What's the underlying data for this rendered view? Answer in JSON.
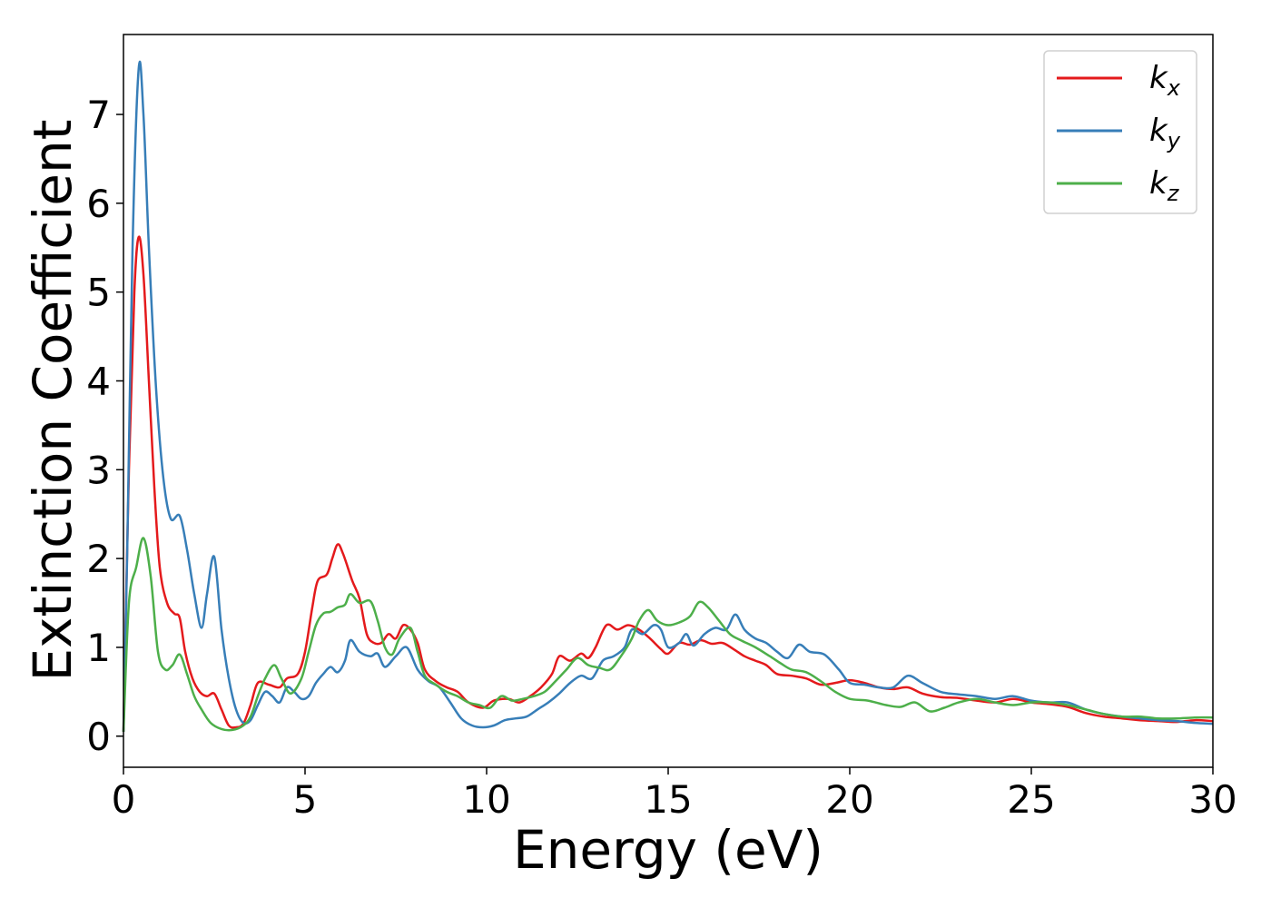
{
  "chart_data": {
    "type": "line",
    "xlabel": "Energy (eV)",
    "ylabel": "Extinction Coefficient",
    "xlim": [
      0,
      30
    ],
    "ylim": [
      -0.35,
      7.9
    ],
    "xticks": [
      "0",
      "5",
      "10",
      "15",
      "20",
      "25",
      "30"
    ],
    "yticks": [
      "0",
      "1",
      "2",
      "3",
      "4",
      "5",
      "6",
      "7"
    ],
    "grid": false,
    "legend_position": "top-right",
    "series": [
      {
        "name": "k",
        "subscript": "x",
        "color": "#e41a1c",
        "points": [
          [
            0,
            0.05
          ],
          [
            0.15,
            3.0
          ],
          [
            0.3,
            5.0
          ],
          [
            0.42,
            5.62
          ],
          [
            0.55,
            5.2
          ],
          [
            0.7,
            4.0
          ],
          [
            0.85,
            2.8
          ],
          [
            1.0,
            1.9
          ],
          [
            1.2,
            1.5
          ],
          [
            1.4,
            1.38
          ],
          [
            1.55,
            1.33
          ],
          [
            1.7,
            0.95
          ],
          [
            1.9,
            0.65
          ],
          [
            2.1,
            0.5
          ],
          [
            2.3,
            0.45
          ],
          [
            2.5,
            0.48
          ],
          [
            2.7,
            0.3
          ],
          [
            2.9,
            0.12
          ],
          [
            3.1,
            0.1
          ],
          [
            3.3,
            0.14
          ],
          [
            3.5,
            0.35
          ],
          [
            3.7,
            0.6
          ],
          [
            4.0,
            0.58
          ],
          [
            4.3,
            0.55
          ],
          [
            4.5,
            0.65
          ],
          [
            4.8,
            0.7
          ],
          [
            5.0,
            0.95
          ],
          [
            5.2,
            1.45
          ],
          [
            5.35,
            1.75
          ],
          [
            5.6,
            1.82
          ],
          [
            5.75,
            2.0
          ],
          [
            5.9,
            2.16
          ],
          [
            6.05,
            2.05
          ],
          [
            6.3,
            1.75
          ],
          [
            6.5,
            1.55
          ],
          [
            6.7,
            1.15
          ],
          [
            6.9,
            1.05
          ],
          [
            7.1,
            1.05
          ],
          [
            7.3,
            1.15
          ],
          [
            7.5,
            1.1
          ],
          [
            7.7,
            1.25
          ],
          [
            7.9,
            1.2
          ],
          [
            8.1,
            1.05
          ],
          [
            8.3,
            0.75
          ],
          [
            8.6,
            0.62
          ],
          [
            8.9,
            0.55
          ],
          [
            9.2,
            0.5
          ],
          [
            9.5,
            0.38
          ],
          [
            9.9,
            0.32
          ],
          [
            10.2,
            0.4
          ],
          [
            10.6,
            0.42
          ],
          [
            10.9,
            0.38
          ],
          [
            11.2,
            0.45
          ],
          [
            11.5,
            0.55
          ],
          [
            11.8,
            0.7
          ],
          [
            12.0,
            0.9
          ],
          [
            12.3,
            0.85
          ],
          [
            12.6,
            0.93
          ],
          [
            12.8,
            0.88
          ],
          [
            13.0,
            1.0
          ],
          [
            13.3,
            1.25
          ],
          [
            13.6,
            1.2
          ],
          [
            13.9,
            1.25
          ],
          [
            14.2,
            1.2
          ],
          [
            14.5,
            1.1
          ],
          [
            14.8,
            0.98
          ],
          [
            15.0,
            0.93
          ],
          [
            15.3,
            1.05
          ],
          [
            15.6,
            1.03
          ],
          [
            15.9,
            1.08
          ],
          [
            16.2,
            1.04
          ],
          [
            16.5,
            1.05
          ],
          [
            16.8,
            0.98
          ],
          [
            17.1,
            0.9
          ],
          [
            17.4,
            0.85
          ],
          [
            17.7,
            0.8
          ],
          [
            18.0,
            0.7
          ],
          [
            18.4,
            0.68
          ],
          [
            18.8,
            0.65
          ],
          [
            19.2,
            0.58
          ],
          [
            19.6,
            0.6
          ],
          [
            20.0,
            0.63
          ],
          [
            20.4,
            0.6
          ],
          [
            20.8,
            0.55
          ],
          [
            21.2,
            0.53
          ],
          [
            21.6,
            0.55
          ],
          [
            22.0,
            0.48
          ],
          [
            22.5,
            0.44
          ],
          [
            23.0,
            0.43
          ],
          [
            23.5,
            0.4
          ],
          [
            24.0,
            0.38
          ],
          [
            24.5,
            0.42
          ],
          [
            25.0,
            0.38
          ],
          [
            25.5,
            0.36
          ],
          [
            26.0,
            0.33
          ],
          [
            26.5,
            0.26
          ],
          [
            27.0,
            0.22
          ],
          [
            27.5,
            0.2
          ],
          [
            28.0,
            0.18
          ],
          [
            28.5,
            0.17
          ],
          [
            29.0,
            0.16
          ],
          [
            29.5,
            0.18
          ],
          [
            30.0,
            0.17
          ]
        ]
      },
      {
        "name": "k",
        "subscript": "y",
        "color": "#377eb8",
        "points": [
          [
            0,
            0.05
          ],
          [
            0.1,
            2.0
          ],
          [
            0.25,
            5.5
          ],
          [
            0.42,
            7.52
          ],
          [
            0.55,
            7.0
          ],
          [
            0.7,
            5.5
          ],
          [
            0.9,
            3.9
          ],
          [
            1.1,
            2.9
          ],
          [
            1.3,
            2.45
          ],
          [
            1.55,
            2.48
          ],
          [
            1.75,
            2.1
          ],
          [
            1.95,
            1.6
          ],
          [
            2.15,
            1.22
          ],
          [
            2.3,
            1.6
          ],
          [
            2.5,
            2.02
          ],
          [
            2.7,
            1.2
          ],
          [
            2.9,
            0.65
          ],
          [
            3.1,
            0.3
          ],
          [
            3.3,
            0.15
          ],
          [
            3.5,
            0.18
          ],
          [
            3.7,
            0.35
          ],
          [
            3.9,
            0.5
          ],
          [
            4.1,
            0.45
          ],
          [
            4.3,
            0.38
          ],
          [
            4.5,
            0.55
          ],
          [
            4.7,
            0.5
          ],
          [
            4.9,
            0.42
          ],
          [
            5.1,
            0.45
          ],
          [
            5.3,
            0.6
          ],
          [
            5.5,
            0.7
          ],
          [
            5.7,
            0.78
          ],
          [
            5.9,
            0.72
          ],
          [
            6.1,
            0.85
          ],
          [
            6.25,
            1.08
          ],
          [
            6.5,
            0.95
          ],
          [
            6.8,
            0.9
          ],
          [
            7.0,
            0.93
          ],
          [
            7.2,
            0.78
          ],
          [
            7.5,
            0.9
          ],
          [
            7.8,
            1.0
          ],
          [
            8.1,
            0.75
          ],
          [
            8.4,
            0.62
          ],
          [
            8.7,
            0.55
          ],
          [
            9.0,
            0.38
          ],
          [
            9.3,
            0.2
          ],
          [
            9.6,
            0.12
          ],
          [
            9.9,
            0.1
          ],
          [
            10.2,
            0.12
          ],
          [
            10.5,
            0.18
          ],
          [
            10.8,
            0.2
          ],
          [
            11.1,
            0.22
          ],
          [
            11.4,
            0.3
          ],
          [
            11.7,
            0.38
          ],
          [
            12.0,
            0.48
          ],
          [
            12.3,
            0.6
          ],
          [
            12.6,
            0.68
          ],
          [
            12.9,
            0.65
          ],
          [
            13.2,
            0.85
          ],
          [
            13.5,
            0.9
          ],
          [
            13.8,
            1.0
          ],
          [
            14.0,
            1.2
          ],
          [
            14.3,
            1.15
          ],
          [
            14.6,
            1.25
          ],
          [
            14.8,
            1.2
          ],
          [
            15.0,
            1.0
          ],
          [
            15.3,
            1.05
          ],
          [
            15.5,
            1.15
          ],
          [
            15.7,
            1.02
          ],
          [
            16.0,
            1.15
          ],
          [
            16.3,
            1.22
          ],
          [
            16.6,
            1.2
          ],
          [
            16.85,
            1.37
          ],
          [
            17.1,
            1.2
          ],
          [
            17.4,
            1.1
          ],
          [
            17.7,
            1.05
          ],
          [
            18.0,
            0.95
          ],
          [
            18.3,
            0.88
          ],
          [
            18.6,
            1.03
          ],
          [
            18.9,
            0.95
          ],
          [
            19.3,
            0.92
          ],
          [
            19.7,
            0.75
          ],
          [
            20.0,
            0.6
          ],
          [
            20.4,
            0.58
          ],
          [
            20.8,
            0.55
          ],
          [
            21.2,
            0.55
          ],
          [
            21.6,
            0.68
          ],
          [
            22.0,
            0.6
          ],
          [
            22.5,
            0.5
          ],
          [
            23.0,
            0.47
          ],
          [
            23.5,
            0.45
          ],
          [
            24.0,
            0.42
          ],
          [
            24.5,
            0.45
          ],
          [
            25.0,
            0.4
          ],
          [
            25.5,
            0.38
          ],
          [
            26.0,
            0.38
          ],
          [
            26.5,
            0.3
          ],
          [
            27.0,
            0.25
          ],
          [
            27.5,
            0.22
          ],
          [
            28.0,
            0.2
          ],
          [
            28.5,
            0.18
          ],
          [
            29.0,
            0.17
          ],
          [
            29.5,
            0.15
          ],
          [
            30.0,
            0.14
          ]
        ]
      },
      {
        "name": "k",
        "subscript": "z",
        "color": "#4daf4a",
        "points": [
          [
            0,
            0.05
          ],
          [
            0.15,
            1.5
          ],
          [
            0.35,
            1.9
          ],
          [
            0.55,
            2.23
          ],
          [
            0.75,
            1.8
          ],
          [
            0.95,
            0.95
          ],
          [
            1.15,
            0.75
          ],
          [
            1.35,
            0.8
          ],
          [
            1.55,
            0.92
          ],
          [
            1.75,
            0.7
          ],
          [
            1.95,
            0.45
          ],
          [
            2.15,
            0.3
          ],
          [
            2.4,
            0.15
          ],
          [
            2.7,
            0.08
          ],
          [
            3.0,
            0.07
          ],
          [
            3.3,
            0.12
          ],
          [
            3.5,
            0.22
          ],
          [
            3.7,
            0.45
          ],
          [
            3.9,
            0.65
          ],
          [
            4.15,
            0.8
          ],
          [
            4.35,
            0.65
          ],
          [
            4.6,
            0.48
          ],
          [
            4.9,
            0.65
          ],
          [
            5.1,
            0.95
          ],
          [
            5.3,
            1.25
          ],
          [
            5.5,
            1.38
          ],
          [
            5.7,
            1.4
          ],
          [
            5.9,
            1.45
          ],
          [
            6.1,
            1.48
          ],
          [
            6.25,
            1.6
          ],
          [
            6.5,
            1.5
          ],
          [
            6.8,
            1.52
          ],
          [
            7.0,
            1.3
          ],
          [
            7.2,
            1.0
          ],
          [
            7.4,
            0.92
          ],
          [
            7.6,
            1.1
          ],
          [
            7.9,
            1.22
          ],
          [
            8.1,
            0.95
          ],
          [
            8.3,
            0.68
          ],
          [
            8.6,
            0.58
          ],
          [
            8.9,
            0.5
          ],
          [
            9.2,
            0.45
          ],
          [
            9.5,
            0.38
          ],
          [
            9.8,
            0.35
          ],
          [
            10.1,
            0.32
          ],
          [
            10.4,
            0.45
          ],
          [
            10.7,
            0.4
          ],
          [
            11.0,
            0.42
          ],
          [
            11.3,
            0.45
          ],
          [
            11.6,
            0.5
          ],
          [
            11.9,
            0.62
          ],
          [
            12.2,
            0.75
          ],
          [
            12.5,
            0.88
          ],
          [
            12.8,
            0.8
          ],
          [
            13.1,
            0.77
          ],
          [
            13.4,
            0.75
          ],
          [
            13.7,
            0.9
          ],
          [
            14.0,
            1.1
          ],
          [
            14.2,
            1.3
          ],
          [
            14.45,
            1.42
          ],
          [
            14.7,
            1.3
          ],
          [
            15.0,
            1.25
          ],
          [
            15.3,
            1.28
          ],
          [
            15.6,
            1.35
          ],
          [
            15.85,
            1.51
          ],
          [
            16.1,
            1.45
          ],
          [
            16.4,
            1.3
          ],
          [
            16.7,
            1.15
          ],
          [
            17.0,
            1.08
          ],
          [
            17.4,
            1.0
          ],
          [
            17.8,
            0.9
          ],
          [
            18.1,
            0.82
          ],
          [
            18.4,
            0.75
          ],
          [
            18.8,
            0.72
          ],
          [
            19.2,
            0.62
          ],
          [
            19.6,
            0.5
          ],
          [
            20.0,
            0.42
          ],
          [
            20.5,
            0.4
          ],
          [
            21.0,
            0.35
          ],
          [
            21.4,
            0.33
          ],
          [
            21.8,
            0.38
          ],
          [
            22.2,
            0.28
          ],
          [
            22.6,
            0.32
          ],
          [
            23.0,
            0.38
          ],
          [
            23.5,
            0.42
          ],
          [
            24.0,
            0.38
          ],
          [
            24.5,
            0.35
          ],
          [
            25.0,
            0.38
          ],
          [
            25.5,
            0.38
          ],
          [
            26.0,
            0.35
          ],
          [
            26.5,
            0.3
          ],
          [
            27.0,
            0.25
          ],
          [
            27.5,
            0.22
          ],
          [
            28.0,
            0.22
          ],
          [
            28.5,
            0.2
          ],
          [
            29.0,
            0.2
          ],
          [
            29.5,
            0.21
          ],
          [
            30.0,
            0.21
          ]
        ]
      }
    ]
  }
}
